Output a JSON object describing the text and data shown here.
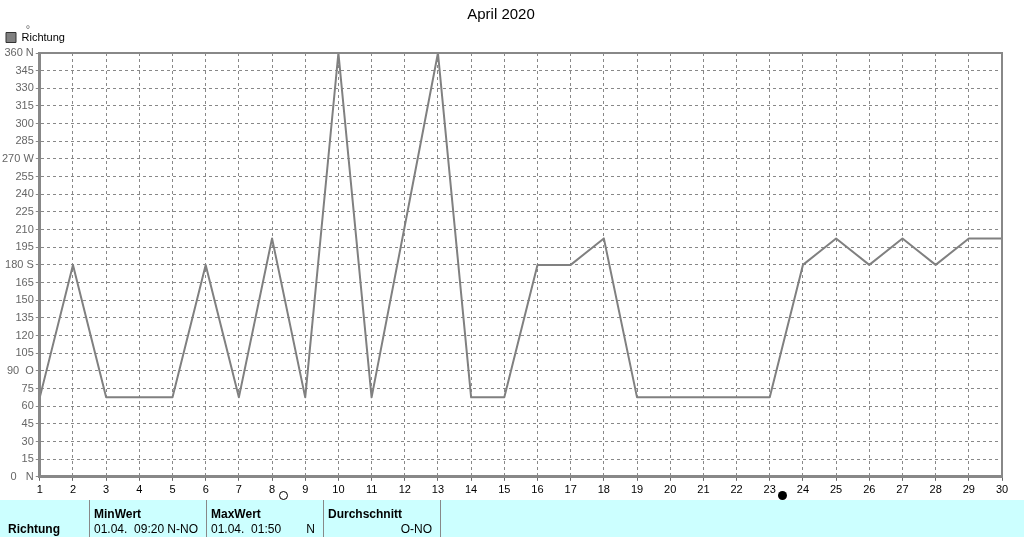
{
  "chart_data": {
    "type": "line",
    "title": "April 2020",
    "ylabel": "°",
    "x": [
      1,
      2,
      3,
      4,
      5,
      6,
      7,
      8,
      9,
      10,
      11,
      12,
      13,
      14,
      15,
      16,
      17,
      18,
      19,
      20,
      21,
      22,
      23,
      24,
      25,
      26,
      27,
      28,
      29,
      30
    ],
    "series": [
      {
        "name": "Richtung",
        "color": "#808080",
        "values": [
          67.5,
          180,
          67.5,
          67.5,
          67.5,
          180,
          67.5,
          202.5,
          67.5,
          360,
          67.5,
          213,
          360,
          67.5,
          67.5,
          180,
          180,
          202.5,
          67.5,
          67.5,
          67.5,
          67.5,
          67.5,
          180,
          202.5,
          180,
          202.5,
          180,
          202.5,
          202.5
        ]
      }
    ],
    "xlim": [
      1,
      30
    ],
    "xticks": [
      1,
      2,
      3,
      4,
      5,
      6,
      7,
      8,
      9,
      10,
      11,
      12,
      13,
      14,
      15,
      16,
      17,
      18,
      19,
      20,
      21,
      22,
      23,
      24,
      25,
      26,
      27,
      28,
      29,
      30
    ],
    "ylim": [
      0,
      360
    ],
    "yticks": [
      {
        "value": 0,
        "label": "0   N"
      },
      15,
      30,
      45,
      60,
      75,
      {
        "value": 90,
        "label": "90  O"
      },
      105,
      120,
      135,
      150,
      165,
      {
        "value": 180,
        "label": "180 S"
      },
      195,
      210,
      225,
      240,
      255,
      {
        "value": 270,
        "label": "270 W"
      },
      285,
      300,
      315,
      330,
      345,
      {
        "value": 360,
        "label": "360 N"
      }
    ],
    "grid": true,
    "legend": "top left",
    "marker": "none",
    "line_style": "solid",
    "annotations": [
      "Richtung",
      "MinWert",
      "01.04.  09:20",
      "N-NO",
      "MaxWert",
      "01.04.  01:50",
      "N",
      "Durchschnitt",
      "O-NO"
    ]
  }
}
